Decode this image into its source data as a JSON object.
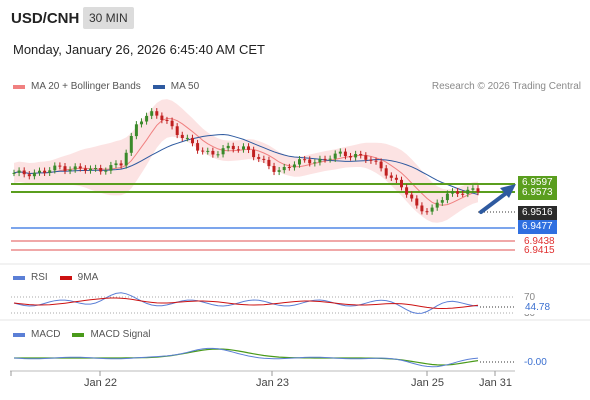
{
  "header": {
    "symbol": "USD/CNH",
    "interval": "30 MIN",
    "datetime": "Monday, January 26, 2026 6:45:40 AM CET",
    "research": "Research © 2026 Trading Central"
  },
  "legend_main": [
    {
      "label": "MA 20 + Bollinger Bands",
      "color": "#f08080"
    },
    {
      "label": "MA 50",
      "color": "#2e5aa0"
    }
  ],
  "legend_rsi": [
    {
      "label": "RSI",
      "color": "#5b7fd6"
    },
    {
      "label": "9MA",
      "color": "#cc1111"
    }
  ],
  "legend_macd": [
    {
      "label": "MACD",
      "color": "#5b7fd6"
    },
    {
      "label": "MACD Signal",
      "color": "#4a9a1a"
    }
  ],
  "colors": {
    "resistance": "#5a9e1e",
    "support_blue": "#2f6fe0",
    "support_red": "#e05050",
    "last_price": "#2b2b2b",
    "bull": "#3a8a2a",
    "bear": "#c02020",
    "arrow": "#2e5aa0",
    "bollinger_fill": "#fbd9d9"
  },
  "chart_data": [
    {
      "type": "candlestick",
      "title": "",
      "x_ticks": [
        "Jan 22",
        "Jan 23",
        "Jan 25",
        "Jan 31"
      ],
      "ylim": [
        6.934,
        6.976
      ],
      "series": [
        {
          "name": "MA 20 + Bollinger Bands"
        },
        {
          "name": "MA 50"
        }
      ],
      "price_levels": [
        {
          "value": "6.9597",
          "kind": "resistance"
        },
        {
          "value": "6.9573",
          "kind": "resistance"
        },
        {
          "value": "6.9516",
          "kind": "last"
        },
        {
          "value": "6.9477",
          "kind": "support"
        },
        {
          "value": "6.9438",
          "kind": "support"
        },
        {
          "value": "6.9415",
          "kind": "support"
        }
      ],
      "close_path": [
        6.956,
        6.9565,
        6.9566,
        6.958,
        6.9575,
        6.957,
        6.9578,
        6.9585,
        6.97,
        6.9712,
        6.969,
        6.965,
        6.962,
        6.9615,
        6.9625,
        6.963,
        6.959,
        6.957,
        6.9585,
        6.9595,
        6.9597,
        6.961,
        6.9612,
        6.9595,
        6.957,
        6.953,
        6.948,
        6.947,
        6.951,
        6.952,
        6.9516
      ]
    },
    {
      "type": "line",
      "title": "RSI",
      "series": [
        {
          "name": "RSI"
        },
        {
          "name": "9MA"
        }
      ],
      "levels": [
        "70",
        "30"
      ],
      "last_value": "44.78"
    },
    {
      "type": "line",
      "title": "MACD",
      "series": [
        {
          "name": "MACD"
        },
        {
          "name": "MACD Signal"
        }
      ],
      "last_value": "-0.00"
    }
  ]
}
